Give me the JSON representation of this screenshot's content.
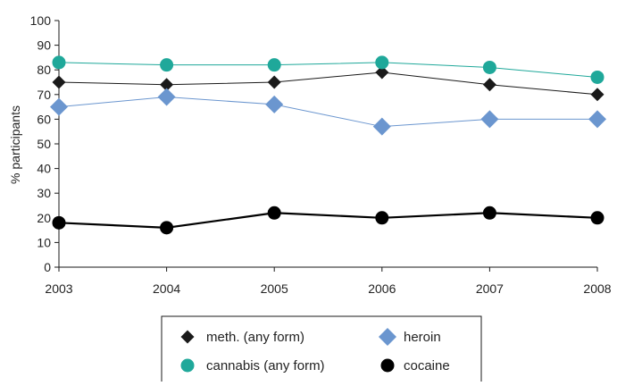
{
  "chart_data": {
    "type": "line",
    "ylabel": "% participants",
    "xlabel": "",
    "x": [
      "2003",
      "2004",
      "2005",
      "2006",
      "2007",
      "2008"
    ],
    "ylim": [
      0,
      100
    ],
    "y_ticks": [
      0,
      10,
      20,
      30,
      40,
      50,
      60,
      70,
      80,
      90,
      100
    ],
    "grid": false,
    "legend_position": "bottom-center",
    "series": [
      {
        "name": "meth. (any form)",
        "values": [
          75,
          74,
          75,
          79,
          74,
          70
        ],
        "color": "#1a1a1a",
        "marker": "diamond",
        "key": "meth"
      },
      {
        "name": "heroin",
        "values": [
          65,
          69,
          66,
          57,
          60,
          60
        ],
        "color": "#6b96cf",
        "marker": "diamond",
        "key": "heroin"
      },
      {
        "name": "cannabis (any form)",
        "values": [
          83,
          82,
          82,
          83,
          81,
          77
        ],
        "color": "#1fa89a",
        "marker": "circle",
        "key": "cannabis"
      },
      {
        "name": "cocaine",
        "values": [
          18,
          16,
          22,
          20,
          22,
          20
        ],
        "color": "#000000",
        "marker": "circle",
        "key": "cocaine"
      }
    ]
  }
}
